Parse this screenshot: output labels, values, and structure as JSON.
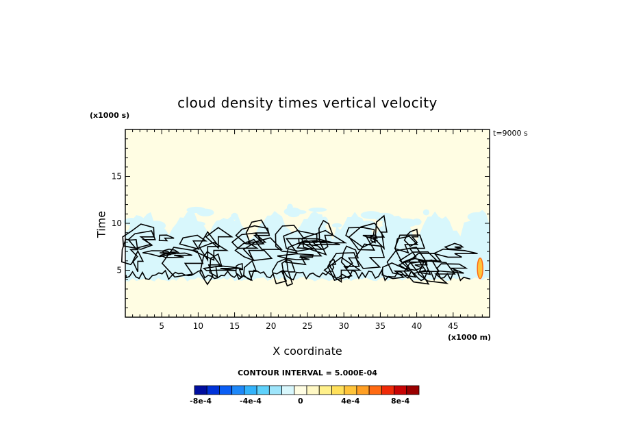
{
  "chart_data": {
    "type": "heatmap",
    "title": "cloud density times vertical velocity",
    "xlabel": "X coordinate",
    "ylabel": "Time",
    "x_unit": "(x1000 m)",
    "y_unit": "(x1000 s)",
    "time_stamp": "t=9000 s",
    "xlim": [
      0,
      50
    ],
    "ylim": [
      0,
      20
    ],
    "x_ticks": [
      5,
      10,
      15,
      20,
      25,
      30,
      35,
      40,
      45
    ],
    "y_ticks": [
      5,
      10,
      15
    ],
    "background_color": "#fffde3",
    "contour_interval_text": "CONTOUR INTERVAL = 5.000E-04",
    "colorbar": {
      "colors": [
        "#000e9f",
        "#0033d9",
        "#0a5ef5",
        "#1e88f9",
        "#33b3fb",
        "#5ed1fb",
        "#9ee5fb",
        "#d8f7fc",
        "#fffde3",
        "#fff8c4",
        "#fff08a",
        "#ffe05a",
        "#ffc43a",
        "#ff9f24",
        "#ff6a12",
        "#ef2a08",
        "#c80404",
        "#9a0000"
      ],
      "tick_labels": [
        "-8e-4",
        "-4e-4",
        "0",
        "4e-4",
        "8e-4"
      ],
      "tick_values": [
        -0.0008,
        -0.0004,
        0,
        0.0004,
        0.0008
      ]
    },
    "regions": {
      "weak_negative_band": {
        "color": "#d8f7fc",
        "y_range": [
          3.8,
          11.5
        ],
        "x_range": [
          0,
          50
        ]
      },
      "positive_patch": {
        "color": "#ffc43a",
        "edge_color": "#ff6a12",
        "x": 48.7,
        "y": 5.2
      }
    }
  }
}
